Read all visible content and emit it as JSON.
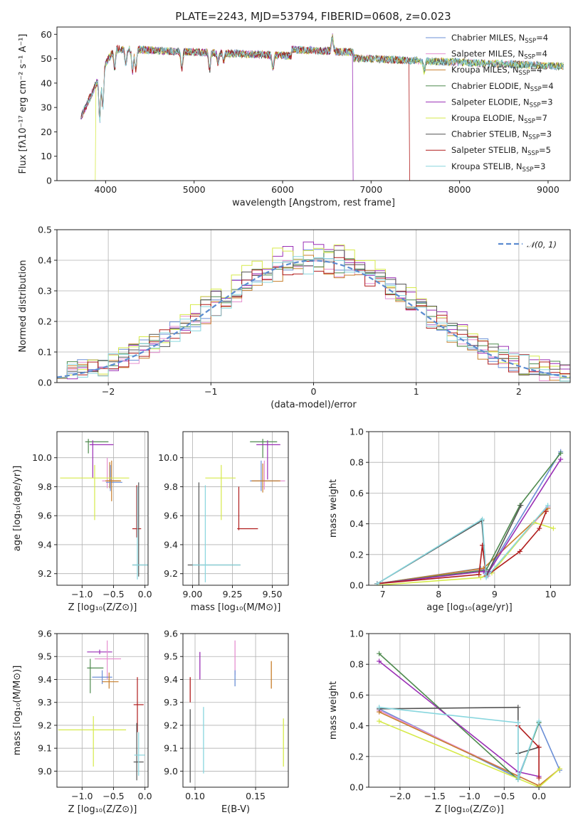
{
  "chart_data": [
    {
      "id": "spectrum",
      "type": "line",
      "title": "PLATE=2243, MJD=53794, FIBERID=0608, z=0.023",
      "xlabel": "wavelength [Angstrom, rest frame]",
      "ylabel": "Flux [fλ10⁻¹⁷ erg cm⁻² s⁻¹ A⁻¹]",
      "xlim": [
        3450,
        9250
      ],
      "ylim": [
        0,
        63
      ],
      "xticks": [
        4000,
        5000,
        6000,
        7000,
        8000,
        9000
      ],
      "yticks": [
        0,
        10,
        20,
        30,
        40,
        50,
        60
      ],
      "legend_position": "top-right",
      "grid": false,
      "series": [
        {
          "name": "Chabrier MILES, N",
          "sub": "SSP",
          "suffix": "=4",
          "color": "#6b8fd6"
        },
        {
          "name": "Salpeter MILES, N",
          "sub": "SSP",
          "suffix": "=4",
          "color": "#e58fd0"
        },
        {
          "name": "Kroupa MILES, N",
          "sub": "SSP",
          "suffix": "=4",
          "color": "#c87e2a"
        },
        {
          "name": "Chabrier ELODIE, N",
          "sub": "SSP",
          "suffix": "=4",
          "color": "#4e8a4e"
        },
        {
          "name": "Salpeter ELODIE, N",
          "sub": "SSP",
          "suffix": "=3",
          "color": "#9a2fb5"
        },
        {
          "name": "Kroupa ELODIE, N",
          "sub": "SSP",
          "suffix": "=7",
          "color": "#d6ea4a"
        },
        {
          "name": "Chabrier STELIB, N",
          "sub": "SSP",
          "suffix": "=3",
          "color": "#555555"
        },
        {
          "name": "Salpeter STELIB, N",
          "sub": "SSP",
          "suffix": "=5",
          "color": "#b01c1c"
        },
        {
          "name": "Kroupa STELIB, N",
          "sub": "SSP",
          "suffix": "=3",
          "color": "#88d6de"
        }
      ]
    },
    {
      "id": "residuals",
      "type": "histogram",
      "xlabel": "(data-model)/error",
      "ylabel": "Normed distribution",
      "xlim": [
        -2.5,
        2.5
      ],
      "ylim": [
        0,
        0.5
      ],
      "xticks": [
        -2,
        -1,
        0,
        1,
        2
      ],
      "yticks": [
        0.0,
        0.1,
        0.2,
        0.3,
        0.4,
        0.5
      ],
      "grid": true,
      "legend_label": "𝒩(0, 1)",
      "legend_position": "top-right",
      "normal_curve": {
        "mean": 0,
        "sd": 1,
        "color": "#5b8bd0"
      }
    },
    {
      "id": "age-Z",
      "type": "errorbar",
      "xlabel": "Z [log₁₀(Z/Z⊙)]",
      "ylabel": "age  [log₁₀(age/yr)]",
      "xlim": [
        -1.4,
        0.05
      ],
      "ylim": [
        9.12,
        10.18
      ],
      "xticks": [
        -1.0,
        -0.5,
        0.0
      ],
      "yticks": [
        9.2,
        9.4,
        9.6,
        9.8,
        10.0
      ],
      "grid": true
    },
    {
      "id": "age-mass",
      "type": "errorbar",
      "xlabel": "mass [log₁₀(M/M⊙)]",
      "xlim": [
        8.94,
        9.6
      ],
      "ylim": [
        9.12,
        10.18
      ],
      "xticks": [
        9.0,
        9.25,
        9.5
      ],
      "yticks": [
        9.2,
        9.4,
        9.6,
        9.8,
        10.0
      ],
      "grid": true
    },
    {
      "id": "weight-age",
      "type": "line",
      "xlabel": "age  [log₁₀(age/yr)]",
      "ylabel": "mass weight",
      "xlim": [
        6.75,
        10.35
      ],
      "ylim": [
        0,
        1.0
      ],
      "xticks": [
        7,
        8,
        9,
        10
      ],
      "yticks": [
        0.0,
        0.2,
        0.4,
        0.6,
        0.8,
        1.0
      ],
      "grid": true
    },
    {
      "id": "mass-Z",
      "type": "errorbar",
      "xlabel": "Z [log₁₀(Z/Z⊙)]",
      "ylabel": "mass [log₁₀(M/M⊙)]",
      "xlim": [
        -1.4,
        0.05
      ],
      "ylim": [
        8.93,
        9.6
      ],
      "xticks": [
        -1.0,
        -0.5,
        0.0
      ],
      "yticks": [
        9.0,
        9.1,
        9.2,
        9.3,
        9.4,
        9.5,
        9.6
      ],
      "grid": true
    },
    {
      "id": "mass-EBV",
      "type": "errorbar",
      "xlabel": "E(B-V)",
      "xlim": [
        0.09,
        0.177
      ],
      "ylim": [
        8.93,
        9.6
      ],
      "xticks": [
        0.1,
        0.15
      ],
      "yticks": [
        9.0,
        9.1,
        9.2,
        9.3,
        9.4,
        9.5,
        9.6
      ],
      "grid": true
    },
    {
      "id": "weight-Z",
      "type": "line",
      "xlabel": "Z [log₁₀(Z/Z⊙)]",
      "ylabel": "mass weight",
      "xlim": [
        -2.45,
        0.45
      ],
      "ylim": [
        0,
        1.0
      ],
      "xticks": [
        -2.0,
        -1.5,
        -1.0,
        -0.5,
        0.0
      ],
      "yticks": [
        0.0,
        0.2,
        0.4,
        0.6,
        0.8,
        1.0
      ],
      "grid": true
    }
  ]
}
